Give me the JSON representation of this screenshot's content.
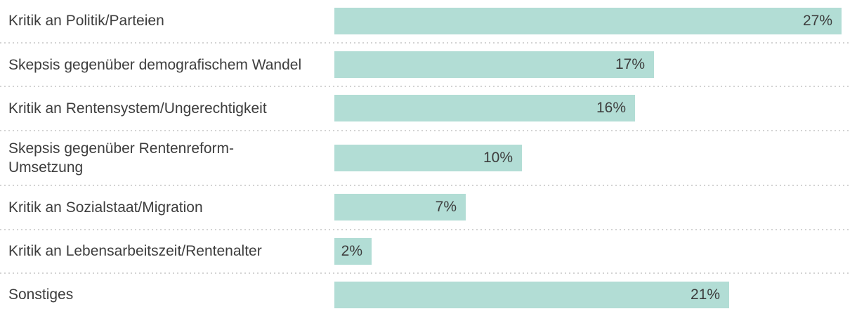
{
  "chart_data": {
    "type": "bar",
    "orientation": "horizontal",
    "title": "",
    "xlabel": "",
    "ylabel": "",
    "categories": [
      "Kritik an Politik/Parteien",
      "Skepsis gegenüber demografischem Wandel",
      "Kritik an Rentensystem/Ungerechtigkeit",
      "Skepsis gegenüber Rentenreform-\nUmsetzung",
      "Kritik an Sozialstaat/Migration",
      "Kritik an Lebensarbeitszeit/Rentenalter",
      "Sonstiges"
    ],
    "values": [
      27,
      17,
      16,
      10,
      7,
      2,
      21
    ],
    "value_labels": [
      "27%",
      "17%",
      "16%",
      "10%",
      "7%",
      "2%",
      "21%"
    ],
    "unit": "%",
    "xlim": [
      0,
      27.4
    ],
    "grid": false,
    "legend": false,
    "bar_color": "#b2ddd5",
    "text_color": "#3d3d3d",
    "divider_color": "#d3d3d3",
    "background_color": "#ffffff"
  }
}
